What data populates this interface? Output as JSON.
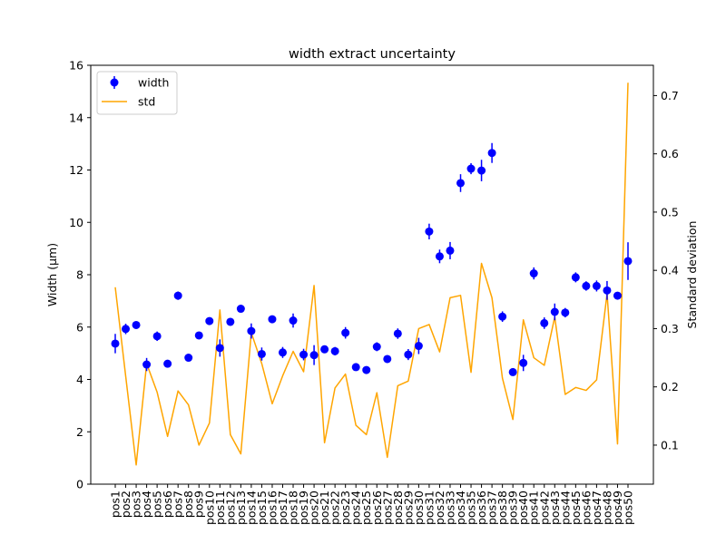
{
  "chart_data": {
    "type": "scatter",
    "title": "width extract uncertainty",
    "ylabel": "Width (μm)",
    "ylabel2": "Standard deviation",
    "ylim": [
      0,
      16
    ],
    "ylim2": [
      0.033,
      0.752
    ],
    "y_ticks": [
      0,
      2,
      4,
      6,
      8,
      10,
      12,
      14,
      16
    ],
    "y2_ticks": [
      0.1,
      0.2,
      0.3,
      0.4,
      0.5,
      0.6,
      0.7
    ],
    "grid": false,
    "legend_position": "upper-left",
    "categories": [
      "pos1",
      "pos2",
      "pos3",
      "pos4",
      "pos5",
      "pos6",
      "pos7",
      "pos8",
      "pos9",
      "pos10",
      "pos11",
      "pos12",
      "pos13",
      "pos14",
      "pos15",
      "pos16",
      "pos17",
      "pos18",
      "pos19",
      "pos20",
      "pos21",
      "pos22",
      "pos23",
      "pos24",
      "pos25",
      "pos26",
      "pos27",
      "pos28",
      "pos29",
      "pos30",
      "pos31",
      "pos32",
      "pos33",
      "pos34",
      "pos35",
      "pos36",
      "pos37",
      "pos38",
      "pos39",
      "pos40",
      "pos41",
      "pos42",
      "pos43",
      "pos44",
      "pos45",
      "pos46",
      "pos47",
      "pos48",
      "pos49",
      "pos50"
    ],
    "series": [
      {
        "name": "width",
        "type": "errorbar",
        "axis": "left",
        "color": "#0000ff",
        "values": [
          5.37,
          5.93,
          6.08,
          4.57,
          5.65,
          4.6,
          7.2,
          4.83,
          5.68,
          6.23,
          5.2,
          6.2,
          6.7,
          5.85,
          4.97,
          6.3,
          5.03,
          6.25,
          4.95,
          4.93,
          5.15,
          5.08,
          5.78,
          4.47,
          4.36,
          5.25,
          4.78,
          5.75,
          4.95,
          5.28,
          9.65,
          8.7,
          8.92,
          11.5,
          12.05,
          11.98,
          12.65,
          6.4,
          4.28,
          4.63,
          8.05,
          6.15,
          6.58,
          6.55,
          7.9,
          7.57,
          7.57,
          7.4,
          7.2,
          8.52
        ],
        "errors": [
          0.37,
          0.2,
          0.07,
          0.25,
          0.18,
          0.13,
          0.16,
          0.12,
          0.07,
          0.11,
          0.33,
          0.09,
          0.07,
          0.29,
          0.25,
          0.14,
          0.21,
          0.27,
          0.22,
          0.38,
          0.1,
          0.16,
          0.22,
          0.13,
          0.1,
          0.17,
          0.06,
          0.2,
          0.21,
          0.31,
          0.3,
          0.26,
          0.33,
          0.34,
          0.21,
          0.41,
          0.38,
          0.2,
          0.11,
          0.31,
          0.23,
          0.22,
          0.32,
          0.18,
          0.19,
          0.18,
          0.21,
          0.36,
          0.09,
          0.72
        ]
      },
      {
        "name": "std",
        "type": "line",
        "axis": "right",
        "color": "#ffa500",
        "values": [
          0.371,
          0.218,
          0.066,
          0.24,
          0.191,
          0.115,
          0.193,
          0.169,
          0.1,
          0.138,
          0.332,
          0.118,
          0.085,
          0.293,
          0.24,
          0.171,
          0.219,
          0.261,
          0.226,
          0.374,
          0.104,
          0.198,
          0.222,
          0.134,
          0.118,
          0.19,
          0.079,
          0.202,
          0.21,
          0.3,
          0.307,
          0.26,
          0.353,
          0.357,
          0.225,
          0.412,
          0.353,
          0.215,
          0.144,
          0.315,
          0.25,
          0.237,
          0.32,
          0.187,
          0.199,
          0.194,
          0.212,
          0.36,
          0.102,
          0.722
        ]
      }
    ]
  }
}
